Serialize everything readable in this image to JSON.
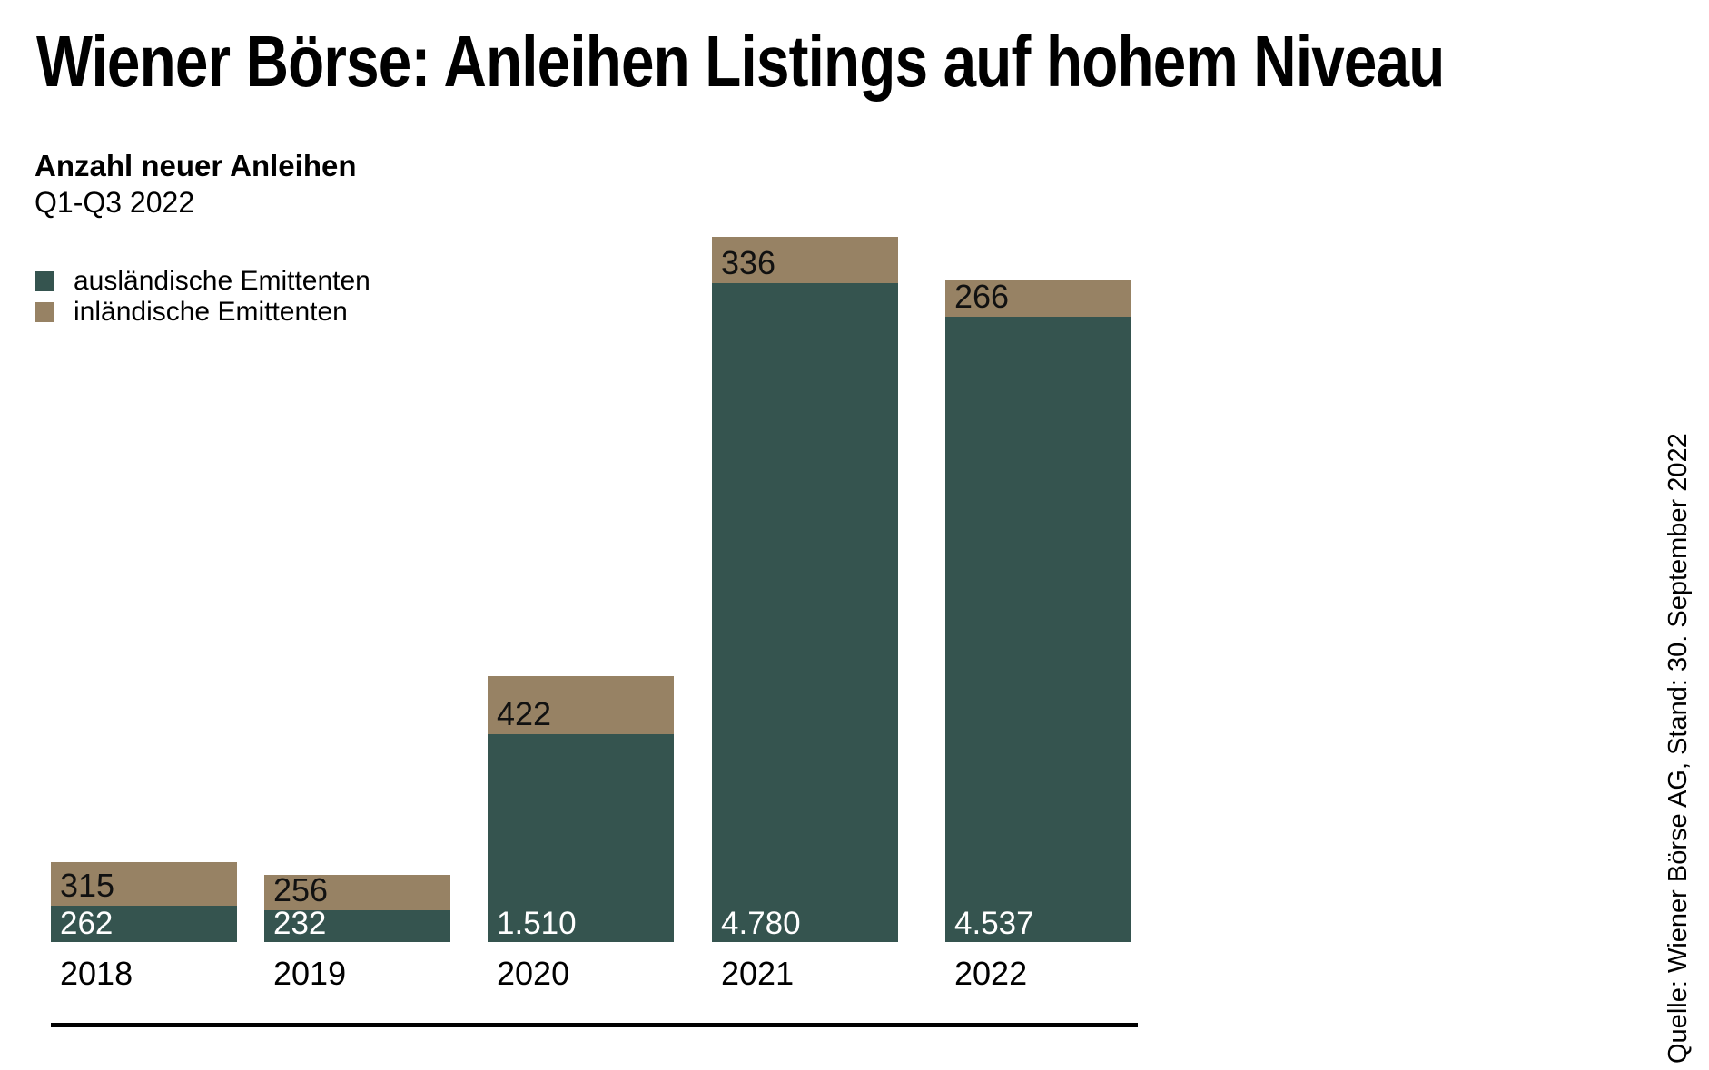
{
  "title": "Wiener Börse: Anleihen Listings auf hohem Niveau",
  "subtitle": {
    "heading": "Anzahl neuer Anleihen",
    "period": "Q1-Q3 2022"
  },
  "legend": {
    "items": [
      {
        "label": "ausländische Emittenten",
        "key": "foreign"
      },
      {
        "label": "inländische Emittenten",
        "key": "domestic"
      }
    ]
  },
  "colors": {
    "foreign": "#35544f",
    "domestic": "#978264",
    "axis_line": "#000000",
    "label_dark": "#111111",
    "label_light": "#ffffff"
  },
  "source": "Quelle: Wiener Börse AG, Stand: 30. September 2022",
  "chart_data": {
    "type": "bar",
    "stacked": true,
    "title": "Wiener Börse: Anleihen Listings auf hohem Niveau",
    "subtitle": "Anzahl neuer Anleihen, Q1-Q3 2022",
    "categories": [
      "2018",
      "2019",
      "2020",
      "2021",
      "2022"
    ],
    "series": [
      {
        "name": "ausländische Emittenten",
        "values": [
          262,
          232,
          1510,
          4780,
          4537
        ],
        "labels": [
          "262",
          "232",
          "1.510",
          "4.780",
          "4.537"
        ],
        "color": "#35544f",
        "label_color": "#ffffff"
      },
      {
        "name": "inländische Emittenten",
        "values": [
          315,
          256,
          422,
          336,
          266
        ],
        "labels": [
          "315",
          "256",
          "422",
          "336",
          "266"
        ],
        "color": "#978264",
        "label_color": "#111111"
      }
    ],
    "totals": [
      577,
      488,
      1932,
      5116,
      4803
    ],
    "ylim": [
      0,
      5116
    ],
    "grid": false,
    "y_axis_visible": false,
    "legend_position": "top-left",
    "value_labels": "inside-bottom-of-segment"
  }
}
